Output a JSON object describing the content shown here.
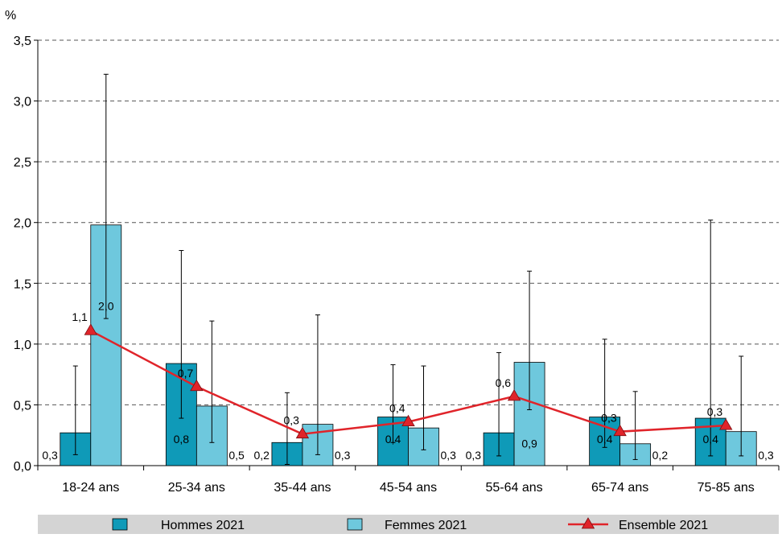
{
  "chart_data": {
    "type": "bar",
    "yunit": "%",
    "ylim": [
      0,
      3.5
    ],
    "yticks": [
      "0,0",
      "0,5",
      "1,0",
      "1,5",
      "2,0",
      "2,5",
      "3,0",
      "3,5"
    ],
    "grid": true,
    "legend_position": "bottom",
    "categories": [
      "18-24 ans",
      "25-34 ans",
      "35-44 ans",
      "45-54 ans",
      "55-64 ans",
      "65-74 ans",
      "75-85 ans"
    ],
    "series": [
      {
        "name": "Hommes 2021",
        "kind": "bar",
        "color": "#0f9ab8",
        "values": [
          0.27,
          0.84,
          0.19,
          0.4,
          0.27,
          0.4,
          0.39
        ],
        "labels": [
          "0,3",
          "0,8",
          "0,2",
          "0,4",
          "0,3",
          "0,4",
          "0,4"
        ],
        "err_low": [
          0.09,
          0.39,
          0.01,
          0.19,
          0.08,
          0.15,
          0.08
        ],
        "err_high": [
          0.82,
          1.77,
          0.6,
          0.83,
          0.93,
          1.04,
          2.02
        ]
      },
      {
        "name": "Femmes 2021",
        "kind": "bar",
        "color": "#6ec8dd",
        "values": [
          1.98,
          0.49,
          0.34,
          0.31,
          0.85,
          0.18,
          0.28
        ],
        "labels": [
          "2,0",
          "0,5",
          "0,3",
          "0,3",
          "0,9",
          "0,2",
          "0,3"
        ],
        "err_low": [
          1.21,
          0.19,
          0.09,
          0.13,
          0.46,
          0.05,
          0.08
        ],
        "err_high": [
          3.22,
          1.19,
          1.24,
          0.82,
          1.6,
          0.61,
          0.9
        ]
      },
      {
        "name": "Ensemble 2021",
        "kind": "line",
        "color": "#e0242a",
        "values": [
          1.11,
          0.65,
          0.26,
          0.36,
          0.57,
          0.28,
          0.33
        ],
        "labels": [
          "1,1",
          "0,7",
          "0,3",
          "0,4",
          "0,6",
          "0,3",
          "0,3"
        ]
      }
    ]
  }
}
